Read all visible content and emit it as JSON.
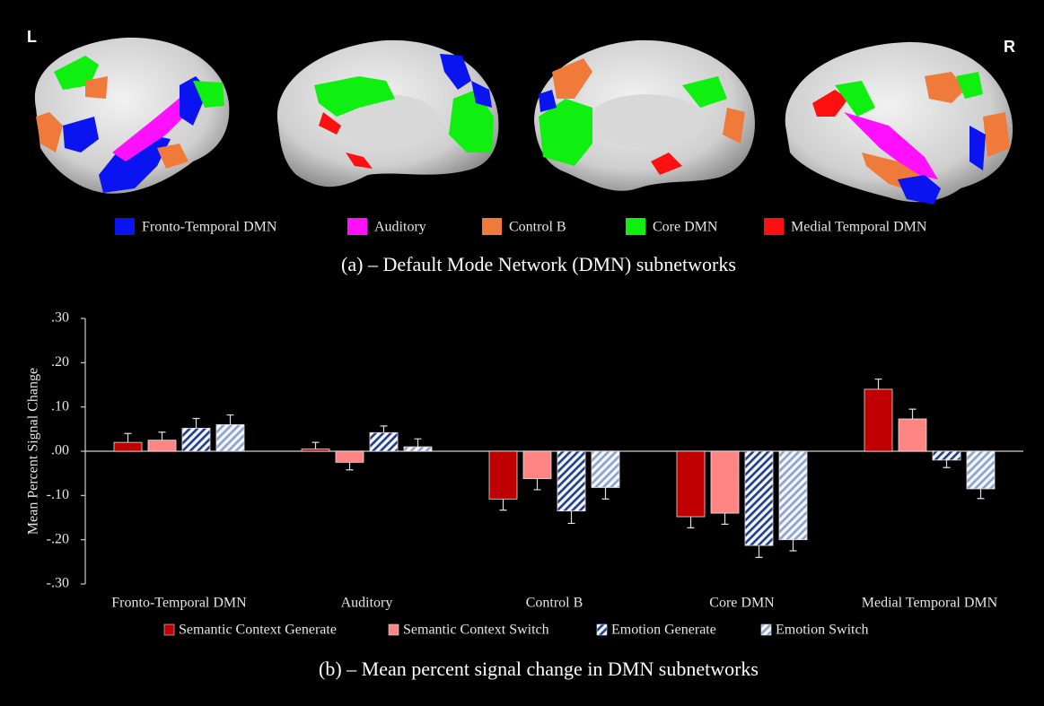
{
  "figure": {
    "left_label": "L",
    "right_label": "R",
    "panel_a_caption": "(a) – Default Mode Network (DMN) subnetworks",
    "panel_b_caption": "(b) – Mean percent signal change in DMN subnetworks",
    "network_legend": [
      {
        "name": "Fronto-Temporal DMN",
        "color": "#0a14f0"
      },
      {
        "name": "Auditory",
        "color": "#ff10ff"
      },
      {
        "name": "Control B",
        "color": "#f07a3a"
      },
      {
        "name": "Core DMN",
        "color": "#10f010"
      },
      {
        "name": "Medial Temporal DMN",
        "color": "#ff1010"
      }
    ]
  },
  "chart_data": {
    "type": "bar",
    "y_label": "Mean Percent Signal Change",
    "categories": [
      "Fronto-Temporal DMN",
      "Auditory",
      "Control B",
      "Core DMN",
      "Medial Temporal DMN"
    ],
    "series": [
      {
        "name": "Semantic Context Generate",
        "color": "#c00000",
        "hatch": false,
        "values": [
          0.02,
          0.005,
          -0.108,
          -0.148,
          0.14
        ],
        "errors": [
          0.02,
          0.015,
          0.025,
          0.025,
          0.023
        ]
      },
      {
        "name": "Semantic Context Switch",
        "color": "#ff8585",
        "hatch": false,
        "values": [
          0.025,
          -0.025,
          -0.062,
          -0.14,
          0.073
        ],
        "errors": [
          0.018,
          0.017,
          0.025,
          0.025,
          0.022
        ]
      },
      {
        "name": "Emotion Generate",
        "color": "#1f3d8c",
        "hatch": true,
        "values": [
          0.052,
          0.042,
          -0.135,
          -0.213,
          -0.02
        ],
        "errors": [
          0.022,
          0.015,
          0.028,
          0.027,
          0.017
        ]
      },
      {
        "name": "Emotion Switch",
        "color": "#8aa2cf",
        "hatch": true,
        "values": [
          0.06,
          0.01,
          -0.082,
          -0.2,
          -0.085
        ],
        "errors": [
          0.022,
          0.018,
          0.026,
          0.025,
          0.022
        ]
      }
    ],
    "ylim": [
      -0.3,
      0.3
    ],
    "yticks": [
      {
        "value": 0.3,
        "label": ".30"
      },
      {
        "value": 0.2,
        "label": ".20"
      },
      {
        "value": 0.1,
        "label": ".10"
      },
      {
        "value": 0,
        "label": ".00"
      },
      {
        "value": -0.1,
        "label": "-.10"
      },
      {
        "value": -0.2,
        "label": "-.20"
      },
      {
        "value": -0.3,
        "label": "-.30"
      }
    ],
    "grid": false
  }
}
